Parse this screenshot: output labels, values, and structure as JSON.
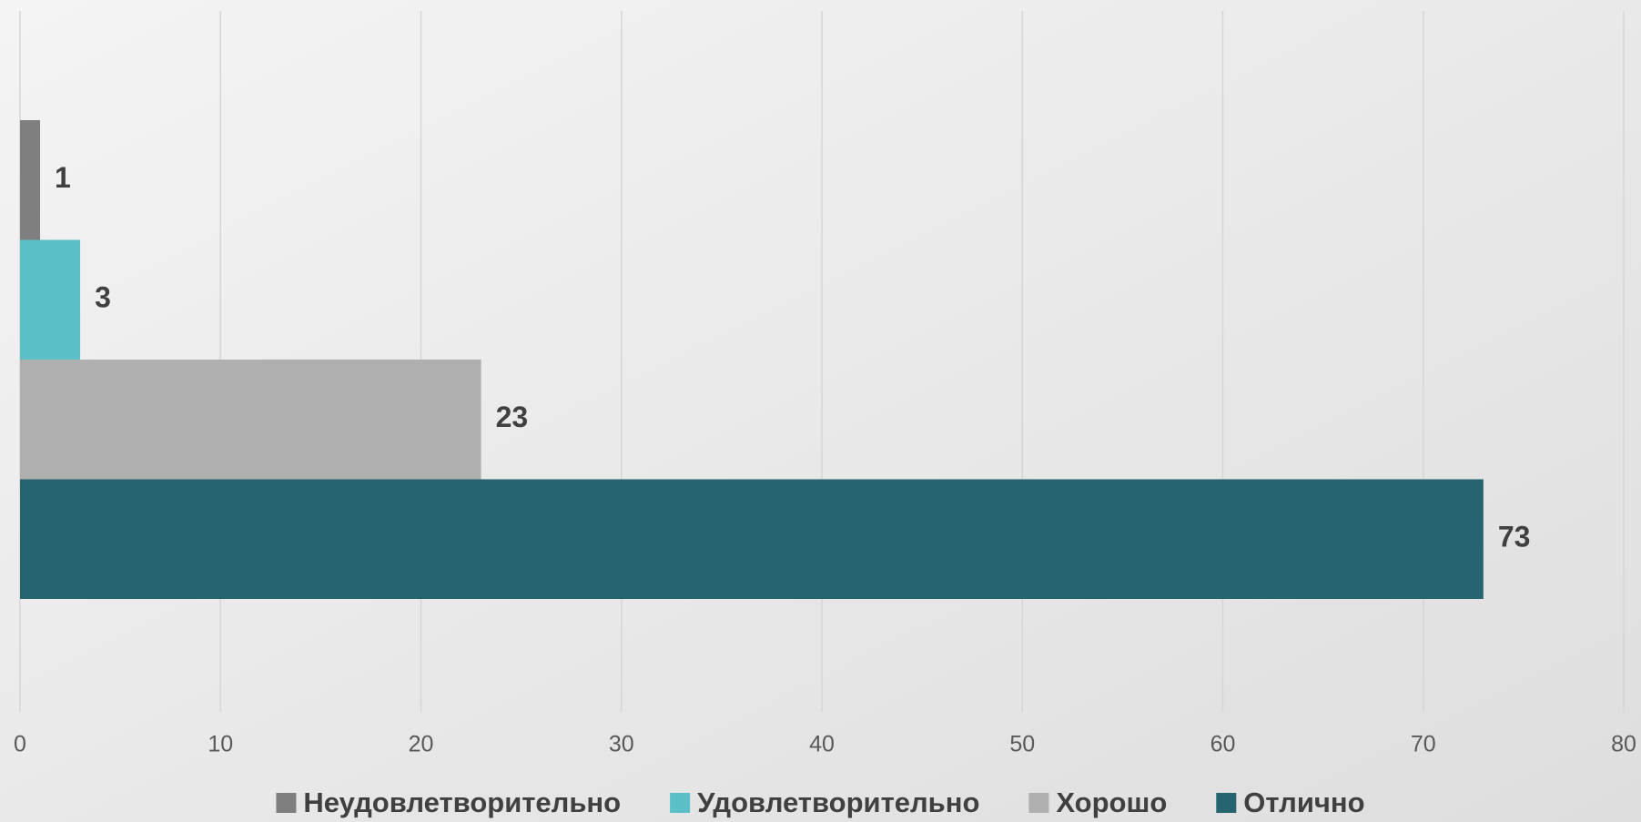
{
  "chart_data": {
    "type": "bar",
    "orientation": "horizontal",
    "categories": [
      null
    ],
    "series": [
      {
        "name": "Неудовлетворительно",
        "color": "#7f7f7f",
        "values": [
          1
        ]
      },
      {
        "name": "Удовлетворительно",
        "color": "#5bbfc8",
        "values": [
          3
        ]
      },
      {
        "name": "Хорошо",
        "color": "#afafaf",
        "values": [
          23
        ]
      },
      {
        "name": "Отлично",
        "color": "#266570",
        "values": [
          73
        ]
      }
    ],
    "xlim": [
      0,
      80
    ],
    "xticks": [
      0,
      10,
      20,
      30,
      40,
      50,
      60,
      70,
      80
    ],
    "grid": true,
    "legend": "bottom"
  }
}
